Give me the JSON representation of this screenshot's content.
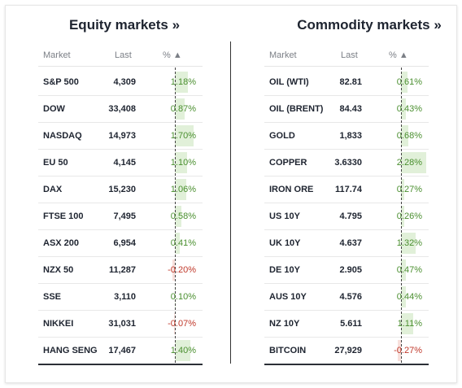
{
  "equity": {
    "title": "Equity markets »",
    "headers": {
      "market": "Market",
      "last": "Last",
      "pct": "% ▲"
    },
    "rows": [
      {
        "name": "S&P 500",
        "last": "4,309",
        "pct": "1.18%",
        "value": 1.18
      },
      {
        "name": "DOW",
        "last": "33,408",
        "pct": "0.87%",
        "value": 0.87
      },
      {
        "name": "NASDAQ",
        "last": "14,973",
        "pct": "1.70%",
        "value": 1.7
      },
      {
        "name": "EU 50",
        "last": "4,145",
        "pct": "1.10%",
        "value": 1.1
      },
      {
        "name": "DAX",
        "last": "15,230",
        "pct": "1.06%",
        "value": 1.06
      },
      {
        "name": "FTSE 100",
        "last": "7,495",
        "pct": "0.58%",
        "value": 0.58
      },
      {
        "name": "ASX 200",
        "last": "6,954",
        "pct": "0.41%",
        "value": 0.41
      },
      {
        "name": "NZX 50",
        "last": "11,287",
        "pct": "-0.20%",
        "value": -0.2
      },
      {
        "name": "SSE",
        "last": "3,110",
        "pct": "0.10%",
        "value": 0.1
      },
      {
        "name": "NIKKEI",
        "last": "31,031",
        "pct": "-0.07%",
        "value": -0.07
      },
      {
        "name": "HANG SENG",
        "last": "17,467",
        "pct": "1.40%",
        "value": 1.4
      }
    ]
  },
  "commodity": {
    "title": "Commodity markets »",
    "headers": {
      "market": "Market",
      "last": "Last",
      "pct": "% ▲"
    },
    "rows": [
      {
        "name": "OIL (WTI)",
        "last": "82.81",
        "pct": "0.61%",
        "value": 0.61
      },
      {
        "name": "OIL (BRENT)",
        "last": "84.43",
        "pct": "0.43%",
        "value": 0.43
      },
      {
        "name": "GOLD",
        "last": "1,833",
        "pct": "0.68%",
        "value": 0.68
      },
      {
        "name": "COPPER",
        "last": "3.6330",
        "pct": "2.28%",
        "value": 2.28
      },
      {
        "name": "IRON ORE",
        "last": "117.74",
        "pct": "0.27%",
        "value": 0.27
      },
      {
        "name": "US 10Y",
        "last": "4.795",
        "pct": "0.26%",
        "value": 0.26
      },
      {
        "name": "UK 10Y",
        "last": "4.637",
        "pct": "1.32%",
        "value": 1.32
      },
      {
        "name": "DE 10Y",
        "last": "2.905",
        "pct": "0.47%",
        "value": 0.47
      },
      {
        "name": "AUS 10Y",
        "last": "4.576",
        "pct": "0.44%",
        "value": 0.44
      },
      {
        "name": "NZ 10Y",
        "last": "5.611",
        "pct": "1.11%",
        "value": 1.11
      },
      {
        "name": "BITCOIN",
        "last": "27,929",
        "pct": "-0.27%",
        "value": -0.27
      }
    ]
  },
  "colors": {
    "positive": "#4a8f2f",
    "negative": "#c0392b",
    "positive_bar": "#e1f0d9",
    "negative_bar": "#f8e0dc"
  }
}
